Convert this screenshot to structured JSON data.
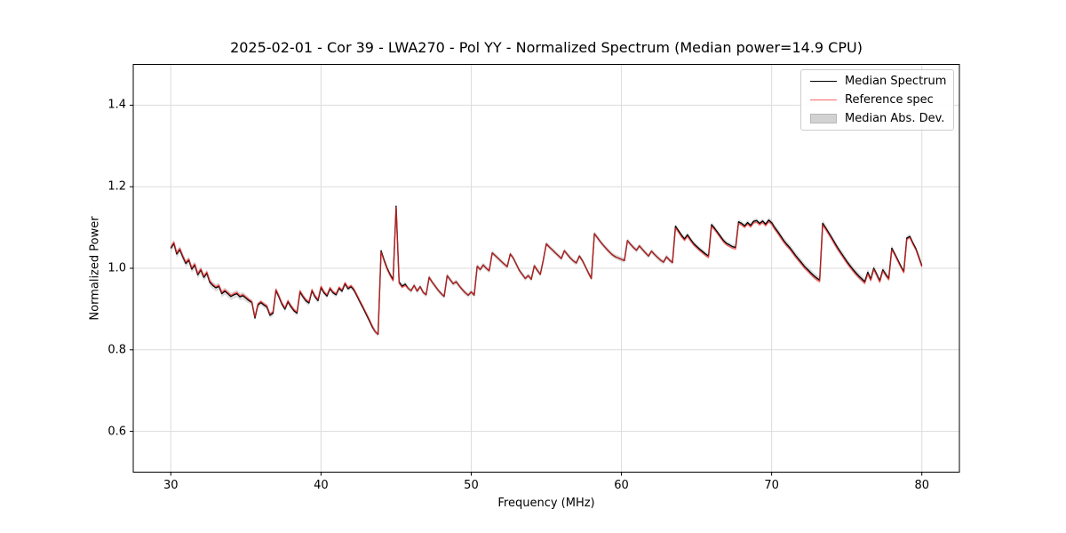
{
  "chart_data": {
    "type": "line",
    "title": "2025-02-01 - Cor 39 - LWA270 - Pol YY - Normalized Spectrum (Median power=14.9 CPU)",
    "xlabel": "Frequency (MHz)",
    "ylabel": "Normalized Power",
    "xlim": [
      27.5,
      82.5
    ],
    "ylim": [
      0.5,
      1.5
    ],
    "xticks": [
      30,
      40,
      50,
      60,
      70,
      80
    ],
    "yticks": [
      0.6,
      0.8,
      1.0,
      1.2,
      1.4
    ],
    "grid": true,
    "grid_color": "#dcdcdc",
    "background": "#ffffff",
    "f_start": 30.0,
    "f_step": 0.2,
    "legend": {
      "position": "upper right",
      "entries": [
        {
          "label": "Median Spectrum",
          "type": "line",
          "color": "#000000",
          "opacity": 1.0
        },
        {
          "label": "Reference spec",
          "type": "line",
          "color": "#ff2a2a",
          "opacity": 0.72
        },
        {
          "label": "Median Abs. Dev.",
          "type": "patch",
          "color": "#d2d2d2",
          "edge": "#b8b8b8"
        }
      ]
    },
    "series": [
      {
        "name": "Median Spectrum",
        "color": "#000000",
        "values": [
          1.049,
          1.061,
          1.035,
          1.046,
          1.028,
          1.012,
          1.02,
          0.998,
          1.008,
          0.984,
          0.996,
          0.978,
          0.988,
          0.966,
          0.958,
          0.952,
          0.956,
          0.938,
          0.944,
          0.938,
          0.931,
          0.935,
          0.938,
          0.93,
          0.933,
          0.927,
          0.921,
          0.916,
          0.878,
          0.91,
          0.916,
          0.91,
          0.905,
          0.885,
          0.89,
          0.946,
          0.93,
          0.912,
          0.9,
          0.918,
          0.906,
          0.896,
          0.89,
          0.942,
          0.93,
          0.92,
          0.915,
          0.945,
          0.93,
          0.921,
          0.953,
          0.94,
          0.932,
          0.95,
          0.94,
          0.935,
          0.951,
          0.944,
          0.962,
          0.95,
          0.955,
          0.946,
          0.932,
          0.917,
          0.903,
          0.888,
          0.873,
          0.857,
          0.845,
          0.838,
          1.043,
          1.02,
          1.0,
          0.985,
          0.972,
          1.152,
          0.966,
          0.956,
          0.961,
          0.951,
          0.945,
          0.958,
          0.944,
          0.955,
          0.941,
          0.935,
          0.978,
          0.966,
          0.956,
          0.946,
          0.938,
          0.931,
          0.982,
          0.972,
          0.962,
          0.967,
          0.957,
          0.948,
          0.94,
          0.934,
          0.942,
          0.934,
          1.005,
          0.997,
          1.008,
          1.0,
          0.994,
          1.038,
          1.031,
          1.024,
          1.017,
          1.01,
          1.004,
          1.035,
          1.025,
          1.01,
          0.995,
          0.985,
          0.975,
          0.982,
          0.973,
          1.006,
          0.995,
          0.985,
          1.02,
          1.06,
          1.052,
          1.045,
          1.038,
          1.031,
          1.024,
          1.043,
          1.034,
          1.025,
          1.018,
          1.013,
          1.03,
          1.019,
          1.004,
          0.989,
          0.975,
          1.085,
          1.075,
          1.065,
          1.056,
          1.048,
          1.04,
          1.033,
          1.028,
          1.025,
          1.022,
          1.019,
          1.068,
          1.059,
          1.051,
          1.044,
          1.055,
          1.046,
          1.038,
          1.03,
          1.042,
          1.034,
          1.027,
          1.02,
          1.015,
          1.028,
          1.02,
          1.014,
          1.103,
          1.092,
          1.081,
          1.072,
          1.082,
          1.071,
          1.061,
          1.054,
          1.047,
          1.041,
          1.035,
          1.03,
          1.107,
          1.098,
          1.088,
          1.078,
          1.068,
          1.061,
          1.057,
          1.053,
          1.051,
          1.114,
          1.11,
          1.104,
          1.112,
          1.105,
          1.115,
          1.117,
          1.11,
          1.116,
          1.108,
          1.118,
          1.112,
          1.1,
          1.09,
          1.079,
          1.068,
          1.059,
          1.051,
          1.041,
          1.031,
          1.022,
          1.013,
          1.004,
          0.997,
          0.989,
          0.982,
          0.976,
          0.971,
          1.11,
          1.099,
          1.087,
          1.075,
          1.062,
          1.05,
          1.039,
          1.028,
          1.017,
          1.007,
          0.998,
          0.989,
          0.981,
          0.974,
          0.967,
          0.99,
          0.973,
          1.0,
          0.985,
          0.969,
          0.996,
          0.985,
          0.975,
          1.049,
          1.035,
          1.02,
          1.005,
          0.992,
          1.074,
          1.078,
          1.062,
          1.048,
          1.028,
          1.006
        ]
      },
      {
        "name": "Reference spec",
        "color": "#ff2a2a",
        "opacity": 0.72,
        "offsets_from_median": [
          {
            "from": 30.0,
            "to": 43.5,
            "offset": 0.003
          },
          {
            "from": 44.0,
            "to": 45.6,
            "offset": -0.003
          },
          {
            "from": 63.5,
            "to": 76.5,
            "offset": -0.004
          },
          {
            "from": 76.5,
            "to": 80.0,
            "offset": -0.003
          }
        ]
      }
    ],
    "mad_band": {
      "name": "Median Abs. Dev.",
      "color": "#c4c4c4",
      "opacity": 0.6,
      "base_halfwidth": 0.006,
      "ranges": [
        {
          "from": 30.0,
          "to": 35.0,
          "halfwidth": 0.009
        },
        {
          "from": 35.0,
          "to": 40.0,
          "halfwidth": 0.007
        },
        {
          "from": 70.0,
          "to": 78.0,
          "halfwidth": 0.008
        }
      ]
    }
  }
}
